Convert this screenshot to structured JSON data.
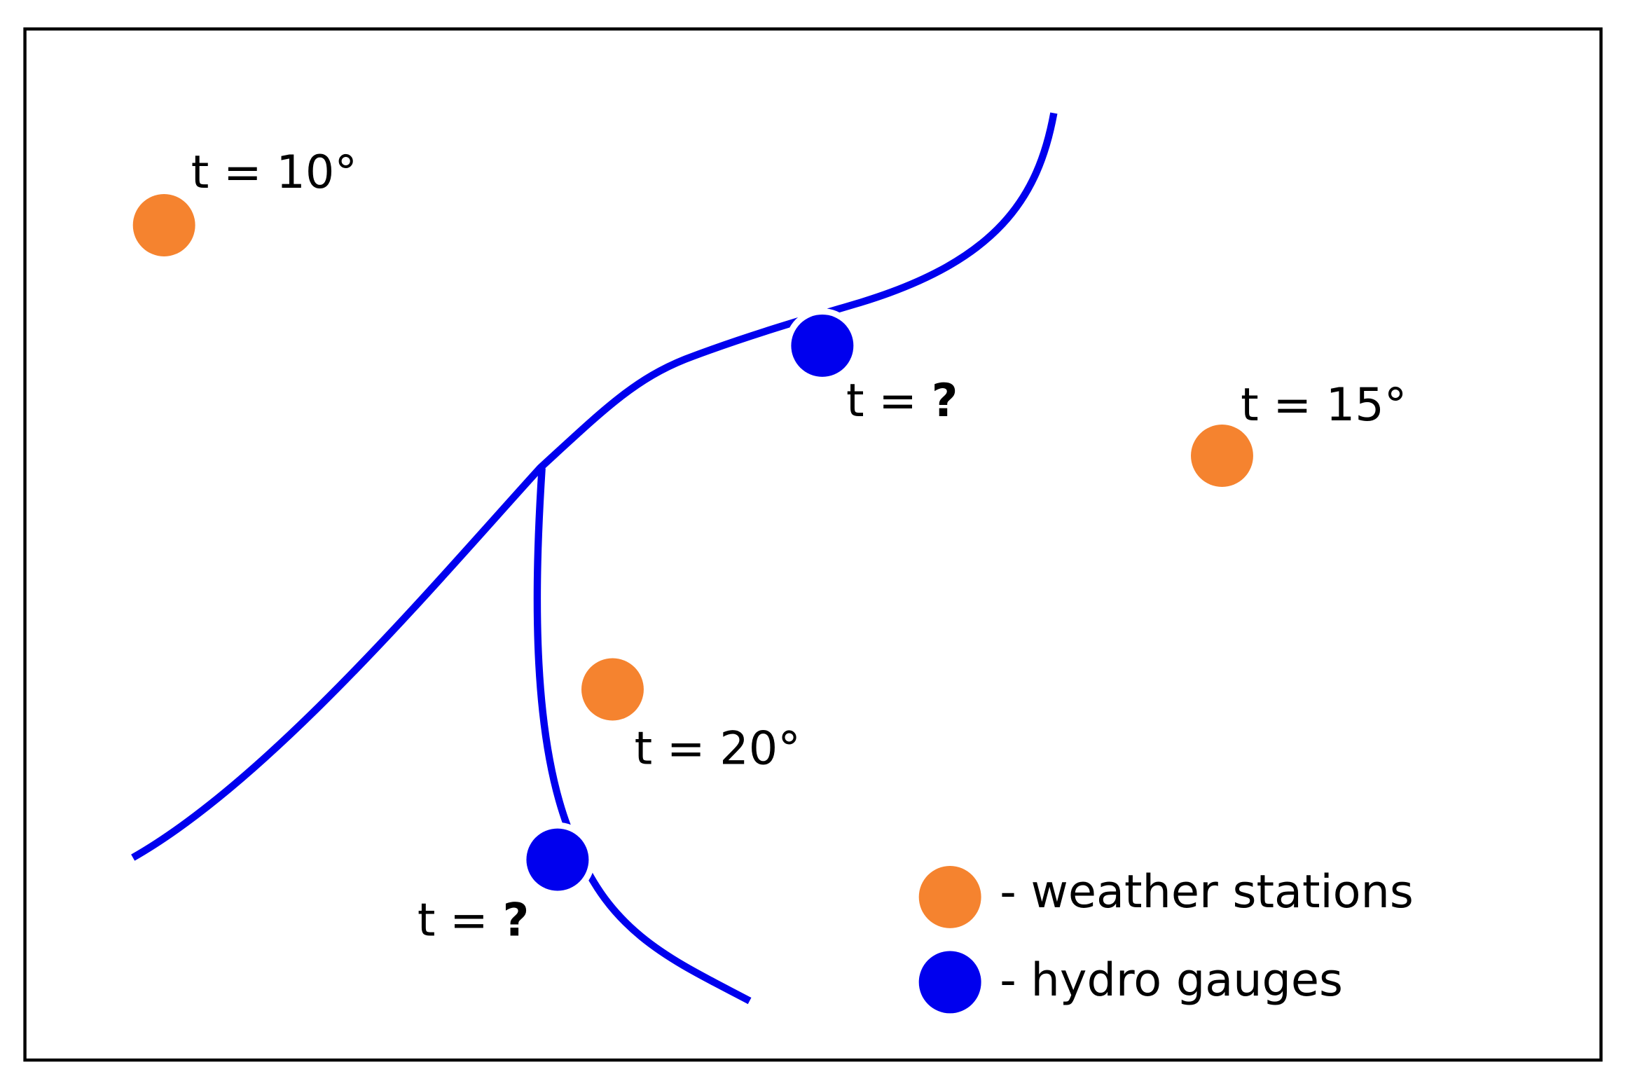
{
  "weather_stations": [
    {
      "label": "t = 10°"
    },
    {
      "label": "t = 15°"
    },
    {
      "label": "t = 20°"
    }
  ],
  "hydro_gauges": [
    {
      "prefix": "t = ",
      "value": "?"
    },
    {
      "prefix": "t = ",
      "value": "?"
    }
  ],
  "legend": {
    "weather_stations": "- weather stations",
    "hydro_gauges": "- hydro gauges"
  }
}
